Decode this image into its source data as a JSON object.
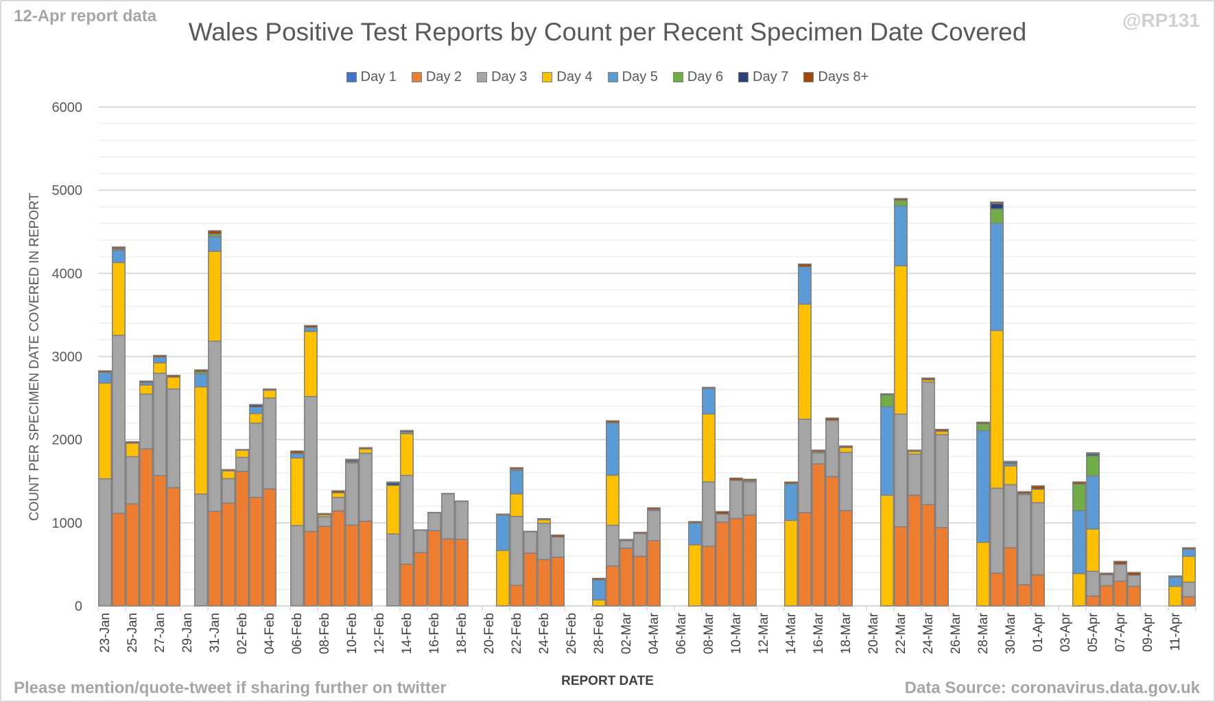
{
  "header": {
    "report_note": "12-Apr report data",
    "handle": "@RP131"
  },
  "footer": {
    "left": "Please mention/quote-tweet if sharing further on twitter",
    "right": "Data Source: coronavirus.data.gov.uk"
  },
  "chart_data": {
    "type": "bar",
    "stacked": true,
    "title": "Wales Positive Test Reports by Count per Recent Specimen Date Covered",
    "xlabel": "REPORT DATE",
    "ylabel": "COUNT PER SPECIMEN DATE COVERED IN REPORT",
    "ylim": [
      0,
      6000
    ],
    "yticks": [
      0,
      1000,
      2000,
      3000,
      4000,
      5000,
      6000
    ],
    "minor_grid_step": 200,
    "grid": true,
    "legend_position": "top",
    "categories": [
      "23-Jan",
      "24-Jan",
      "25-Jan",
      "26-Jan",
      "27-Jan",
      "28-Jan",
      "29-Jan",
      "30-Jan",
      "31-Jan",
      "01-Feb",
      "02-Feb",
      "03-Feb",
      "04-Feb",
      "05-Feb",
      "06-Feb",
      "07-Feb",
      "08-Feb",
      "09-Feb",
      "10-Feb",
      "11-Feb",
      "12-Feb",
      "13-Feb",
      "14-Feb",
      "15-Feb",
      "16-Feb",
      "17-Feb",
      "18-Feb",
      "19-Feb",
      "20-Feb",
      "21-Feb",
      "22-Feb",
      "23-Feb",
      "24-Feb",
      "25-Feb",
      "26-Feb",
      "27-Feb",
      "28-Feb",
      "01-Mar",
      "02-Mar",
      "03-Mar",
      "04-Mar",
      "05-Mar",
      "06-Mar",
      "07-Mar",
      "08-Mar",
      "09-Mar",
      "10-Mar",
      "11-Mar",
      "12-Mar",
      "13-Mar",
      "14-Mar",
      "15-Mar",
      "16-Mar",
      "17-Mar",
      "18-Mar",
      "19-Mar",
      "20-Mar",
      "21-Mar",
      "22-Mar",
      "23-Mar",
      "24-Mar",
      "25-Mar",
      "26-Mar",
      "27-Mar",
      "28-Mar",
      "29-Mar",
      "30-Mar",
      "31-Mar",
      "01-Apr",
      "02-Apr",
      "03-Apr",
      "04-Apr",
      "05-Apr",
      "06-Apr",
      "07-Apr",
      "08-Apr",
      "09-Apr",
      "10-Apr",
      "11-Apr",
      "12-Apr"
    ],
    "tick_label_every": 2,
    "series": [
      {
        "name": "Day 1",
        "color": "#4472c4",
        "values": [
          0,
          0,
          0,
          0,
          0,
          0,
          0,
          0,
          0,
          0,
          0,
          0,
          0,
          0,
          0,
          0,
          0,
          0,
          0,
          0,
          0,
          0,
          0,
          0,
          0,
          0,
          0,
          0,
          0,
          0,
          0,
          0,
          0,
          0,
          0,
          0,
          0,
          0,
          0,
          0,
          0,
          0,
          0,
          0,
          0,
          0,
          0,
          0,
          0,
          0,
          0,
          0,
          0,
          0,
          0,
          0,
          0,
          0,
          0,
          0,
          0,
          0,
          0,
          0,
          0,
          0,
          0,
          0,
          0,
          0,
          0,
          0,
          0,
          0,
          0,
          0,
          0,
          0,
          0,
          0
        ]
      },
      {
        "name": "Day 2",
        "color": "#ed7d31",
        "values": [
          0,
          1112,
          1227,
          1888,
          1568,
          1423,
          0,
          0,
          1137,
          1236,
          1618,
          1305,
          1407,
          0,
          0,
          895,
          957,
          1143,
          972,
          1019,
          0,
          0,
          503,
          641,
          906,
          806,
          801,
          0,
          0,
          0,
          249,
          635,
          558,
          586,
          0,
          0,
          0,
          481,
          694,
          597,
          785,
          0,
          0,
          0,
          716,
          1007,
          1052,
          1094,
          0,
          0,
          0,
          1122,
          1709,
          1555,
          1147,
          0,
          0,
          0,
          953,
          1332,
          1219,
          943,
          0,
          0,
          0,
          394,
          700,
          255,
          375,
          0,
          0,
          0,
          119,
          244,
          297,
          236,
          0,
          0,
          0,
          111
        ]
      },
      {
        "name": "Day 3",
        "color": "#a5a5a5",
        "values": [
          1530,
          2143,
          568,
          659,
          1230,
          1186,
          0,
          1345,
          2047,
          295,
          168,
          894,
          1093,
          0,
          966,
          1624,
          115,
          161,
          746,
          817,
          0,
          865,
          1066,
          270,
          213,
          542,
          456,
          0,
          0,
          0,
          828,
          257,
          436,
          243,
          0,
          0,
          0,
          489,
          91,
          273,
          363,
          0,
          0,
          0,
          775,
          98,
          458,
          397,
          0,
          0,
          0,
          1124,
          131,
          677,
          699,
          0,
          0,
          0,
          1354,
          494,
          1473,
          1117,
          0,
          0,
          0,
          1022,
          758,
          1085,
          867,
          0,
          0,
          0,
          298,
          131,
          203,
          133,
          0,
          0,
          0,
          175
        ]
      },
      {
        "name": "Day 4",
        "color": "#ffc000",
        "values": [
          1150,
          876,
          162,
          109,
          125,
          143,
          0,
          1289,
          1081,
          93,
          87,
          115,
          94,
          0,
          814,
          783,
          24,
          56,
          15,
          52,
          0,
          585,
          503,
          0,
          0,
          0,
          0,
          0,
          0,
          668,
          271,
          0,
          42,
          0,
          0,
          0,
          72,
          603,
          0,
          0,
          10,
          0,
          0,
          736,
          817,
          0,
          0,
          14,
          0,
          0,
          1029,
          1384,
          14,
          0,
          59,
          0,
          0,
          1332,
          1784,
          32,
          26,
          39,
          0,
          0,
          765,
          1897,
          226,
          10,
          161,
          0,
          0,
          389,
          508,
          0,
          0,
          0,
          0,
          0,
          236,
          311
        ]
      },
      {
        "name": "Day 5",
        "color": "#5b9bd5",
        "values": [
          128,
          143,
          0,
          31,
          68,
          0,
          0,
          155,
          177,
          0,
          0,
          78,
          0,
          0,
          53,
          46,
          0,
          0,
          0,
          0,
          0,
          0,
          19,
          0,
          0,
          0,
          0,
          0,
          0,
          423,
          282,
          0,
          0,
          0,
          0,
          0,
          240,
          628,
          0,
          0,
          0,
          0,
          0,
          260,
          307,
          0,
          0,
          0,
          0,
          0,
          439,
          448,
          0,
          0,
          0,
          0,
          0,
          1065,
          719,
          0,
          0,
          0,
          0,
          0,
          1345,
          1290,
          26,
          0,
          0,
          0,
          0,
          758,
          639,
          0,
          0,
          0,
          0,
          0,
          111,
          84
        ]
      },
      {
        "name": "Day 6",
        "color": "#70ad47",
        "values": [
          0,
          12,
          0,
          0,
          0,
          0,
          0,
          25,
          31,
          0,
          0,
          0,
          0,
          0,
          0,
          0,
          0,
          0,
          0,
          0,
          0,
          0,
          0,
          0,
          0,
          0,
          0,
          0,
          0,
          0,
          13,
          0,
          0,
          0,
          0,
          0,
          0,
          0,
          0,
          0,
          0,
          0,
          0,
          0,
          0,
          0,
          0,
          0,
          0,
          0,
          0,
          0,
          0,
          0,
          0,
          0,
          0,
          138,
          68,
          0,
          0,
          0,
          0,
          0,
          80,
          172,
          0,
          0,
          0,
          0,
          0,
          317,
          242,
          0,
          0,
          0,
          0,
          0,
          0,
          0
        ]
      },
      {
        "name": "Day 7",
        "color": "#264478",
        "values": [
          0,
          10,
          0,
          0,
          0,
          0,
          0,
          0,
          0,
          0,
          0,
          25,
          0,
          0,
          0,
          0,
          0,
          0,
          20,
          0,
          0,
          30,
          0,
          0,
          0,
          0,
          0,
          0,
          0,
          0,
          0,
          0,
          0,
          0,
          0,
          0,
          0,
          0,
          0,
          0,
          0,
          0,
          0,
          0,
          0,
          0,
          0,
          0,
          0,
          0,
          0,
          0,
          0,
          0,
          0,
          0,
          0,
          0,
          0,
          0,
          0,
          0,
          0,
          0,
          0,
          64,
          16,
          0,
          0,
          0,
          0,
          0,
          22,
          0,
          0,
          0,
          0,
          0,
          0,
          0
        ]
      },
      {
        "name": "Days 8+",
        "color": "#9e480e",
        "values": [
          20,
          21,
          18,
          18,
          22,
          22,
          0,
          25,
          40,
          16,
          9,
          6,
          15,
          0,
          31,
          25,
          16,
          25,
          11,
          16,
          0,
          11,
          19,
          4,
          6,
          5,
          5,
          0,
          0,
          14,
          20,
          6,
          14,
          24,
          0,
          0,
          20,
          26,
          15,
          16,
          22,
          0,
          0,
          19,
          14,
          31,
          28,
          19,
          0,
          0,
          23,
          34,
          20,
          28,
          19,
          0,
          0,
          16,
          22,
          16,
          23,
          25,
          0,
          0,
          20,
          19,
          13,
          25,
          41,
          0,
          0,
          28,
          14,
          19,
          36,
          34,
          0,
          0,
          14,
          19
        ]
      }
    ]
  }
}
